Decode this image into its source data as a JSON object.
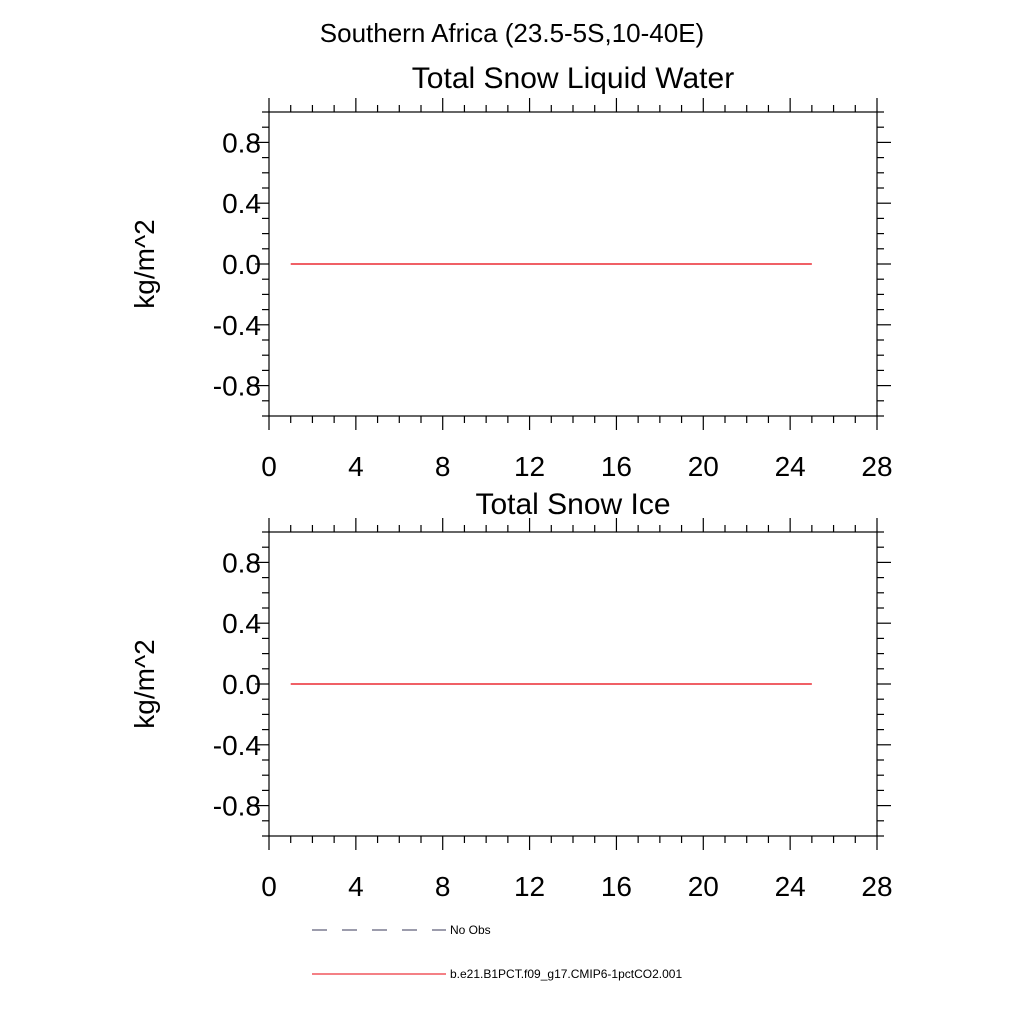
{
  "figure": {
    "suptitle": "Southern Africa (23.5-5S,10-40E)"
  },
  "chart_data": [
    {
      "type": "line",
      "title": "Total Snow Liquid Water",
      "xlabel": "",
      "ylabel": "kg/m^2",
      "xlim": [
        0,
        28
      ],
      "ylim": [
        -1.0,
        1.0
      ],
      "x_ticks": [
        0,
        4,
        8,
        12,
        16,
        20,
        24,
        28
      ],
      "x_tick_labels": [
        "0",
        "4",
        "8",
        "12",
        "16",
        "20",
        "24",
        "28"
      ],
      "y_ticks": [
        0.8,
        0.4,
        0.0,
        -0.4,
        -0.8
      ],
      "y_tick_labels": [
        "0.8",
        "0.4",
        "0.0",
        "-0.4",
        "-0.8"
      ],
      "grid": false,
      "series": [
        {
          "name": "b.e21.B1PCT.f09_g17.CMIP6-1pctCO2.001",
          "color": "#e8000b",
          "x": [
            1,
            25
          ],
          "y": [
            0.0,
            0.0
          ]
        }
      ]
    },
    {
      "type": "line",
      "title": "Total Snow Ice",
      "xlabel": "",
      "ylabel": "kg/m^2",
      "xlim": [
        0,
        28
      ],
      "ylim": [
        -1.0,
        1.0
      ],
      "x_ticks": [
        0,
        4,
        8,
        12,
        16,
        20,
        24,
        28
      ],
      "x_tick_labels": [
        "0",
        "4",
        "8",
        "12",
        "16",
        "20",
        "24",
        "28"
      ],
      "y_ticks": [
        0.8,
        0.4,
        0.0,
        -0.4,
        -0.8
      ],
      "y_tick_labels": [
        "0.8",
        "0.4",
        "0.0",
        "-0.4",
        "-0.8"
      ],
      "grid": false,
      "series": [
        {
          "name": "b.e21.B1PCT.f09_g17.CMIP6-1pctCO2.001",
          "color": "#e8000b",
          "x": [
            1,
            25
          ],
          "y": [
            0.0,
            0.0
          ]
        }
      ]
    }
  ],
  "legend": {
    "placement": "bottom",
    "items": [
      {
        "label": "No Obs",
        "style": "dashed",
        "color": "#3a3a5a"
      },
      {
        "label": "b.e21.B1PCT.f09_g17.CMIP6-1pctCO2.001",
        "style": "solid",
        "color": "#e8000b"
      }
    ]
  }
}
